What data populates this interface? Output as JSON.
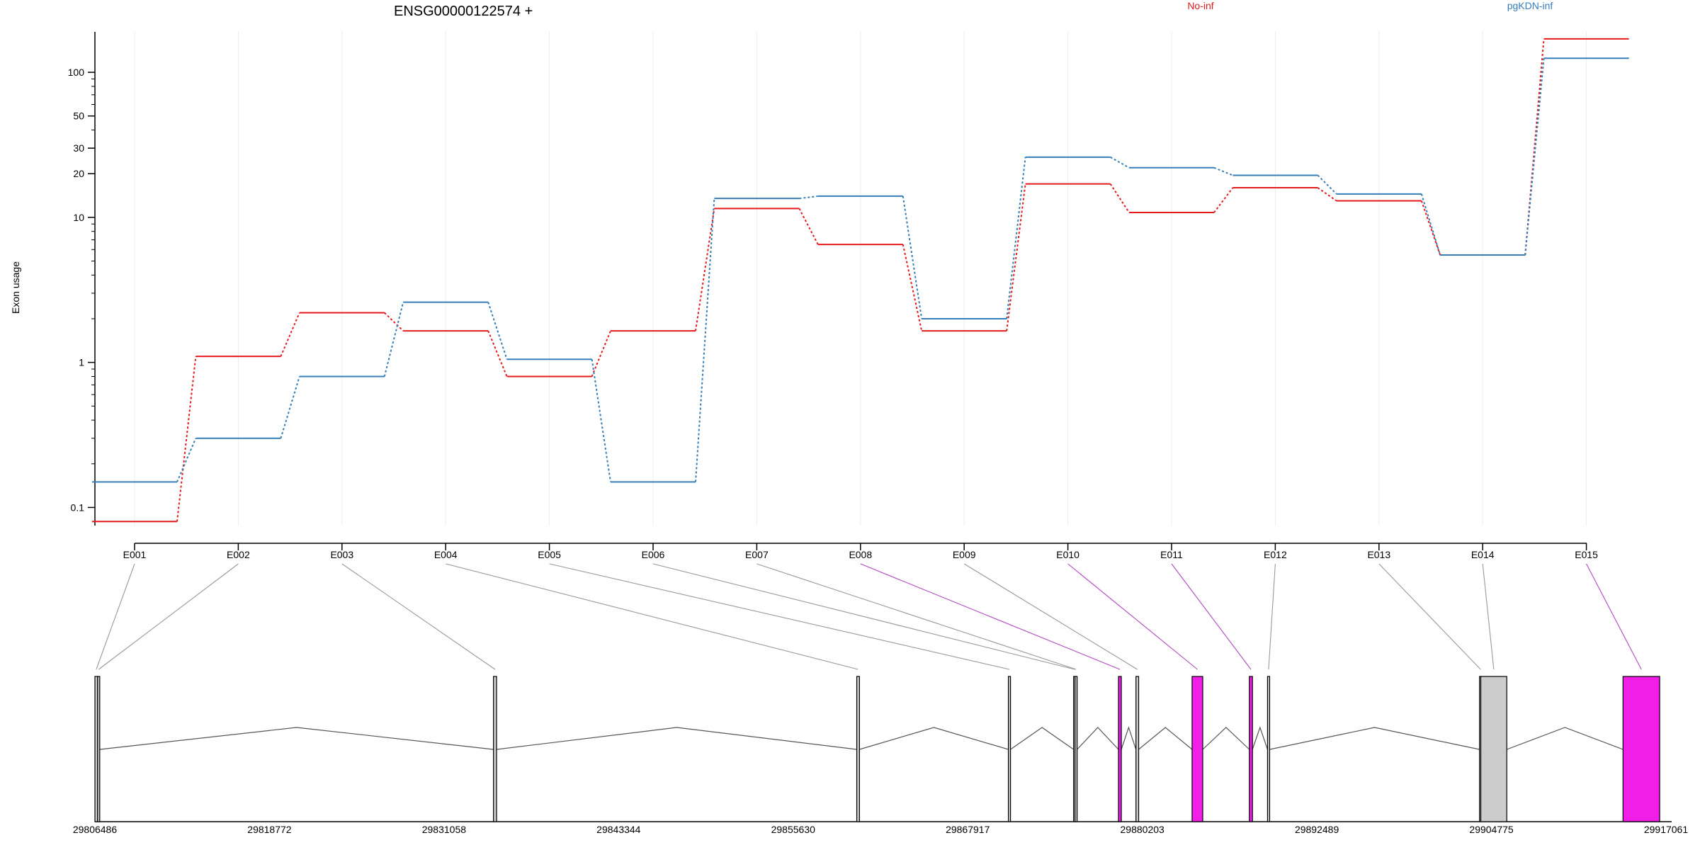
{
  "chart_data": {
    "type": "line",
    "title": "ENSG00000122574 +",
    "ylabel": "Exon usage",
    "yscale": "log",
    "ylim": [
      0.075,
      190
    ],
    "ytick_labels": [
      "0.1",
      "1",
      "10",
      "20",
      "30",
      "50",
      "100"
    ],
    "ytick_values": [
      0.1,
      1,
      10,
      20,
      30,
      50,
      100
    ],
    "grid": "vertical, light",
    "legend_placement": "top",
    "categories": [
      "E001",
      "E002",
      "E003",
      "E004",
      "E005",
      "E006",
      "E007",
      "E008",
      "E009",
      "E010",
      "E011",
      "E012",
      "E013",
      "E014",
      "E015"
    ],
    "series": [
      {
        "name": "No-inf",
        "color": "#e41a1c",
        "values": [
          0.08,
          1.1,
          2.2,
          1.65,
          0.8,
          1.65,
          11.5,
          6.5,
          1.65,
          17,
          10.8,
          16,
          13,
          5.5,
          170
        ]
      },
      {
        "name": "pgKDN-inf",
        "color": "#377eb8",
        "values": [
          0.15,
          0.3,
          0.8,
          2.6,
          1.05,
          0.15,
          13.5,
          14,
          2,
          26,
          22,
          19.5,
          14.5,
          5.5,
          125
        ]
      }
    ],
    "gene_model": {
      "coord_labels": [
        "29806486",
        "29818772",
        "29831058",
        "29843344",
        "29855630",
        "29867917",
        "29880203",
        "29892489",
        "29904775",
        "29917061"
      ],
      "coord_values": [
        29806486,
        29818772,
        29831058,
        29843344,
        29855630,
        29867917,
        29880203,
        29892489,
        29904775,
        29917061
      ],
      "highlight_color": "#f01ee6",
      "normal_color": "#cccccc",
      "exons": [
        {
          "id": "E001",
          "start": 29806486,
          "end": 29806676,
          "highlight": false
        },
        {
          "id": "E002",
          "start": 29806676,
          "end": 29806706,
          "highlight": false
        },
        {
          "id": "E003",
          "start": 29834536,
          "end": 29834756,
          "highlight": false
        },
        {
          "id": "E004",
          "start": 29860106,
          "end": 29860296,
          "highlight": false
        },
        {
          "id": "E005",
          "start": 29870776,
          "end": 29870906,
          "highlight": false
        },
        {
          "id": "E006",
          "start": 29875366,
          "end": 29875466,
          "highlight": false
        },
        {
          "id": "E007",
          "start": 29875466,
          "end": 29875576,
          "highlight": false
        },
        {
          "id": "E008",
          "start": 29878526,
          "end": 29878726,
          "highlight": true
        },
        {
          "id": "E009",
          "start": 29879756,
          "end": 29879946,
          "highlight": false
        },
        {
          "id": "E010",
          "start": 29883706,
          "end": 29884456,
          "highlight": true
        },
        {
          "id": "E011",
          "start": 29887736,
          "end": 29887956,
          "highlight": true
        },
        {
          "id": "E012",
          "start": 29889016,
          "end": 29889166,
          "highlight": false
        },
        {
          "id": "E013",
          "start": 29903936,
          "end": 29904026,
          "highlight": false
        },
        {
          "id": "E014",
          "start": 29904026,
          "end": 29905856,
          "highlight": false
        },
        {
          "id": "E015",
          "start": 29914036,
          "end": 29916616,
          "highlight": true
        }
      ]
    }
  }
}
